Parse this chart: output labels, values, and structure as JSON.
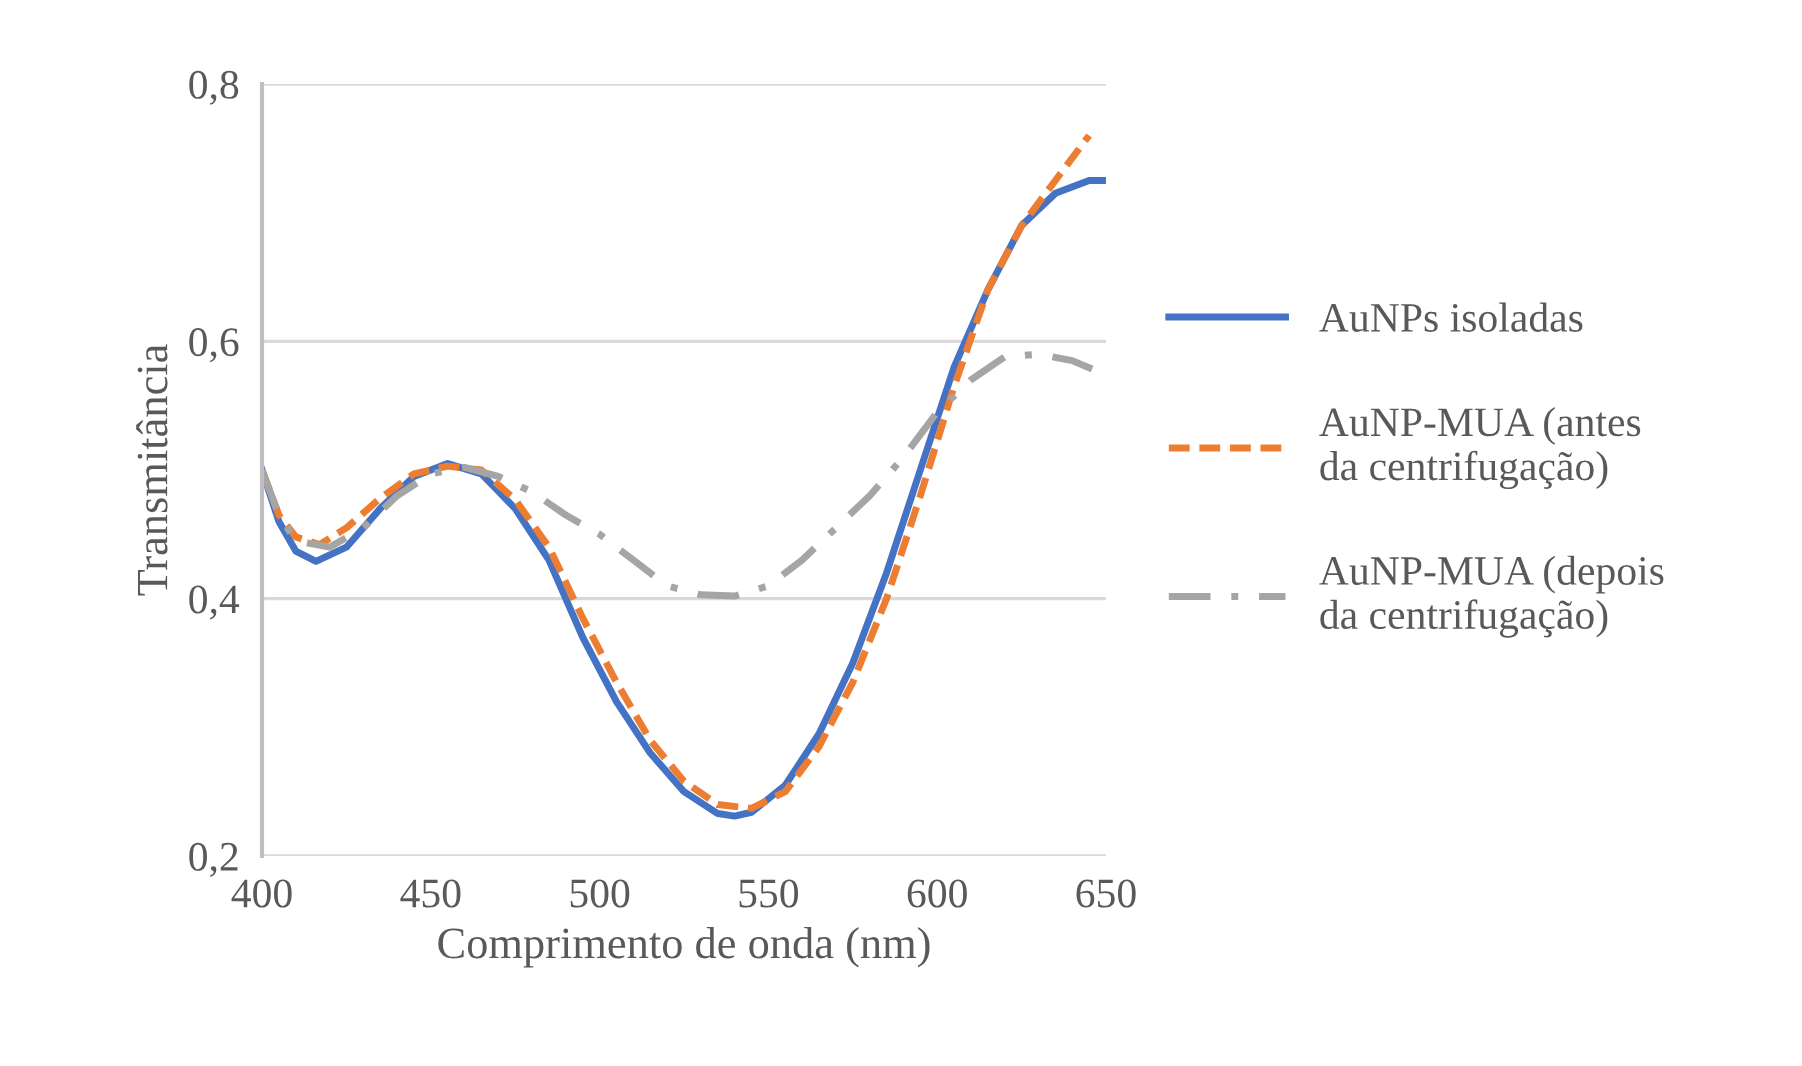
{
  "chart_data": {
    "type": "line",
    "xlabel": "Comprimento de onda (nm)",
    "ylabel": "Transmitância",
    "xlim": [
      400,
      650
    ],
    "xticks": [
      400,
      450,
      500,
      550,
      600,
      650
    ],
    "ylim": [
      0.2,
      0.8
    ],
    "yticks": [
      {
        "value": 0.2,
        "label": "0,2"
      },
      {
        "value": 0.4,
        "label": "0,4"
      },
      {
        "value": 0.6,
        "label": "0,6"
      },
      {
        "value": 0.8,
        "label": "0,8"
      }
    ],
    "grid": "y",
    "legend": "right",
    "marker": "none",
    "series": [
      {
        "name": "AuNPs isoladas",
        "color": "#4472c4",
        "line_style": "solid",
        "x": [
          400,
          405,
          410,
          416,
          425,
          435,
          445,
          455,
          465,
          475,
          485,
          495,
          505,
          515,
          525,
          535,
          540,
          545,
          555,
          565,
          575,
          585,
          595,
          605,
          615,
          625,
          635,
          645,
          650
        ],
        "values": [
          0.5,
          0.46,
          0.437,
          0.429,
          0.44,
          0.47,
          0.495,
          0.505,
          0.497,
          0.47,
          0.43,
          0.37,
          0.32,
          0.28,
          0.25,
          0.233,
          0.231,
          0.234,
          0.255,
          0.295,
          0.35,
          0.42,
          0.5,
          0.58,
          0.64,
          0.69,
          0.715,
          0.725,
          0.725
        ]
      },
      {
        "name": "AuNP-MUA (antes da centrifugação)",
        "color": "#ed7d31",
        "line_style": "dashed",
        "x": [
          400,
          405,
          410,
          417,
          425,
          435,
          445,
          455,
          465,
          475,
          485,
          495,
          505,
          515,
          525,
          535,
          545,
          555,
          565,
          575,
          585,
          595,
          605,
          615,
          625,
          635,
          645
        ],
        "values": [
          0.5,
          0.465,
          0.448,
          0.442,
          0.455,
          0.478,
          0.497,
          0.503,
          0.5,
          0.477,
          0.44,
          0.385,
          0.335,
          0.29,
          0.258,
          0.24,
          0.237,
          0.25,
          0.285,
          0.335,
          0.4,
          0.48,
          0.565,
          0.64,
          0.69,
          0.725,
          0.76
        ]
      },
      {
        "name": "AuNP-MUA (depois da centrifugação)",
        "color": "#a5a5a5",
        "line_style": "dashdot",
        "x": [
          400,
          405,
          410,
          420,
          430,
          440,
          450,
          460,
          470,
          480,
          490,
          500,
          510,
          520,
          530,
          540,
          550,
          560,
          570,
          580,
          590,
          600,
          610,
          620,
          630,
          640,
          650
        ],
        "values": [
          0.5,
          0.465,
          0.445,
          0.44,
          0.455,
          0.48,
          0.497,
          0.502,
          0.495,
          0.483,
          0.465,
          0.45,
          0.43,
          0.41,
          0.403,
          0.402,
          0.41,
          0.43,
          0.455,
          0.48,
          0.51,
          0.545,
          0.57,
          0.588,
          0.59,
          0.585,
          0.574
        ]
      }
    ]
  }
}
